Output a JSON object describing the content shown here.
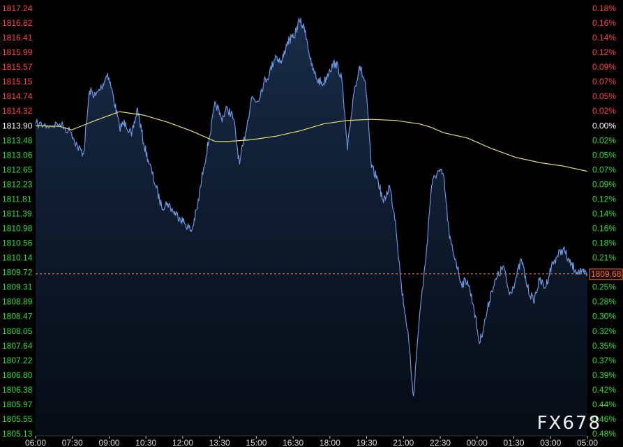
{
  "chart_data": {
    "type": "line",
    "instrument_reference_price": 1813.9,
    "last_price": 1809.68,
    "last_price_label": "1809.68",
    "y_left_ticks": [
      {
        "label": "1817.24",
        "color": "#ff4444"
      },
      {
        "label": "1816.82",
        "color": "#ff4444"
      },
      {
        "label": "1816.41",
        "color": "#ff4444"
      },
      {
        "label": "1815.99",
        "color": "#ff4444"
      },
      {
        "label": "1815.57",
        "color": "#ff4444"
      },
      {
        "label": "1815.15",
        "color": "#ff4444"
      },
      {
        "label": "1814.74",
        "color": "#ff4444"
      },
      {
        "label": "1814.32",
        "color": "#ff4444"
      },
      {
        "label": "1813.90",
        "color": "#ffffff"
      },
      {
        "label": "1813.48",
        "color": "#33dd33"
      },
      {
        "label": "1813.06",
        "color": "#33dd33"
      },
      {
        "label": "1812.65",
        "color": "#33dd33"
      },
      {
        "label": "1812.23",
        "color": "#33dd33"
      },
      {
        "label": "1811.81",
        "color": "#33dd33"
      },
      {
        "label": "1811.39",
        "color": "#33dd33"
      },
      {
        "label": "1810.98",
        "color": "#33dd33"
      },
      {
        "label": "1810.56",
        "color": "#33dd33"
      },
      {
        "label": "1810.14",
        "color": "#33dd33"
      },
      {
        "label": "1809.72",
        "color": "#33dd33"
      },
      {
        "label": "1809.31",
        "color": "#33dd33"
      },
      {
        "label": "1808.89",
        "color": "#33dd33"
      },
      {
        "label": "1808.47",
        "color": "#33dd33"
      },
      {
        "label": "1808.05",
        "color": "#33dd33"
      },
      {
        "label": "1807.64",
        "color": "#33dd33"
      },
      {
        "label": "1807.22",
        "color": "#33dd33"
      },
      {
        "label": "1806.80",
        "color": "#33dd33"
      },
      {
        "label": "1806.38",
        "color": "#33dd33"
      },
      {
        "label": "1805.97",
        "color": "#33dd33"
      },
      {
        "label": "1805.55",
        "color": "#33dd33"
      },
      {
        "label": "1805.13",
        "color": "#33dd33"
      }
    ],
    "y_right_ticks": [
      {
        "label": "0.18%",
        "color": "#ff4444"
      },
      {
        "label": "0.16%",
        "color": "#ff4444"
      },
      {
        "label": "0.14%",
        "color": "#ff4444"
      },
      {
        "label": "0.12%",
        "color": "#ff4444"
      },
      {
        "label": "0.09%",
        "color": "#ff4444"
      },
      {
        "label": "0.07%",
        "color": "#ff4444"
      },
      {
        "label": "0.05%",
        "color": "#ff4444"
      },
      {
        "label": "0.02%",
        "color": "#ff4444"
      },
      {
        "label": "0.00%",
        "color": "#ffffff"
      },
      {
        "label": "0.02%",
        "color": "#33dd33"
      },
      {
        "label": "0.05%",
        "color": "#33dd33"
      },
      {
        "label": "0.07%",
        "color": "#33dd33"
      },
      {
        "label": "0.09%",
        "color": "#33dd33"
      },
      {
        "label": "0.12%",
        "color": "#33dd33"
      },
      {
        "label": "0.14%",
        "color": "#33dd33"
      },
      {
        "label": "0.16%",
        "color": "#33dd33"
      },
      {
        "label": "0.18%",
        "color": "#33dd33"
      },
      {
        "label": "0.21%",
        "color": "#33dd33"
      },
      {
        "label": "0.23%",
        "color": "#33dd33"
      },
      {
        "label": "0.25%",
        "color": "#33dd33"
      },
      {
        "label": "0.28%",
        "color": "#33dd33"
      },
      {
        "label": "0.30%",
        "color": "#33dd33"
      },
      {
        "label": "0.32%",
        "color": "#33dd33"
      },
      {
        "label": "0.35%",
        "color": "#33dd33"
      },
      {
        "label": "0.37%",
        "color": "#33dd33"
      },
      {
        "label": "0.39%",
        "color": "#33dd33"
      },
      {
        "label": "0.42%",
        "color": "#33dd33"
      },
      {
        "label": "0.44%",
        "color": "#33dd33"
      },
      {
        "label": "0.46%",
        "color": "#33dd33"
      },
      {
        "label": "0.48%",
        "color": "#33dd33"
      }
    ],
    "x_ticks": [
      "06:00",
      "07:30",
      "09:00",
      "10:30",
      "12:00",
      "13:30",
      "15:00",
      "16:30",
      "18:00",
      "19:30",
      "21:00",
      "22:30",
      "00:00",
      "01:30",
      "03:00",
      "05:00"
    ],
    "ylim": [
      1805.13,
      1817.24
    ],
    "grid": false,
    "series": [
      {
        "role": "price",
        "color": "#6a95e0",
        "fill": "#13233d",
        "x": [
          "06:00",
          "06:30",
          "07:00",
          "07:30",
          "07:45",
          "08:00",
          "08:15",
          "08:30",
          "08:45",
          "09:00",
          "09:15",
          "09:30",
          "09:45",
          "10:00",
          "10:15",
          "10:30",
          "10:45",
          "11:00",
          "11:15",
          "11:30",
          "11:45",
          "12:00",
          "12:15",
          "12:30",
          "12:45",
          "13:00",
          "13:15",
          "13:30",
          "13:45",
          "14:00",
          "14:15",
          "14:30",
          "14:45",
          "15:00",
          "15:15",
          "15:30",
          "15:45",
          "16:00",
          "16:15",
          "16:30",
          "16:45",
          "17:00",
          "17:15",
          "17:30",
          "17:45",
          "18:00",
          "18:15",
          "18:30",
          "18:45",
          "19:00",
          "19:15",
          "19:30",
          "19:45",
          "20:00",
          "20:15",
          "20:30",
          "20:45",
          "21:00",
          "21:15",
          "21:30",
          "21:45",
          "22:00",
          "22:15",
          "22:30",
          "22:45",
          "23:00",
          "23:15",
          "23:30",
          "23:45",
          "00:00",
          "00:15",
          "00:30",
          "00:45",
          "01:00",
          "01:15",
          "01:30",
          "01:45",
          "02:00",
          "02:15",
          "02:30",
          "02:45",
          "03:00",
          "03:15",
          "03:30",
          "03:45",
          "04:00",
          "04:15",
          "04:30",
          "04:45",
          "05:00"
        ],
        "values": [
          1813.95,
          1813.9,
          1813.95,
          1813.7,
          1813.3,
          1813.1,
          1814.9,
          1814.75,
          1815.0,
          1815.4,
          1814.7,
          1813.85,
          1814.0,
          1813.6,
          1814.4,
          1813.4,
          1812.8,
          1812.2,
          1811.6,
          1811.7,
          1811.45,
          1811.3,
          1811.1,
          1810.9,
          1811.6,
          1812.7,
          1813.6,
          1814.55,
          1814.1,
          1814.4,
          1814.1,
          1812.8,
          1813.7,
          1814.7,
          1814.6,
          1815.1,
          1815.4,
          1815.9,
          1815.7,
          1816.3,
          1816.4,
          1816.9,
          1816.6,
          1815.6,
          1815.2,
          1815.1,
          1815.5,
          1815.7,
          1815.3,
          1813.2,
          1814.8,
          1815.6,
          1815.1,
          1812.7,
          1812.4,
          1811.7,
          1812.2,
          1811.2,
          1809.3,
          1808.1,
          1806.2,
          1808.5,
          1810.0,
          1812.2,
          1812.6,
          1812.5,
          1810.7,
          1810.1,
          1809.4,
          1809.5,
          1808.8,
          1807.7,
          1808.4,
          1809.2,
          1809.6,
          1809.9,
          1809.1,
          1809.5,
          1810.1,
          1809.3,
          1808.9,
          1809.5,
          1809.3,
          1809.9,
          1810.2,
          1810.4,
          1810.0,
          1809.8,
          1809.7,
          1809.68
        ]
      },
      {
        "role": "average",
        "color": "#e8e070",
        "x": [
          "06:00",
          "07:00",
          "07:30",
          "08:30",
          "09:30",
          "10:00",
          "10:30",
          "11:30",
          "12:30",
          "13:30",
          "14:00",
          "15:00",
          "16:00",
          "17:00",
          "18:00",
          "19:00",
          "20:00",
          "21:00",
          "22:00",
          "22:30",
          "23:00",
          "00:00",
          "01:00",
          "02:00",
          "03:00",
          "04:00",
          "05:00"
        ],
        "values": [
          1813.9,
          1813.88,
          1813.78,
          1814.05,
          1814.3,
          1814.25,
          1814.2,
          1814.0,
          1813.75,
          1813.45,
          1813.45,
          1813.5,
          1813.6,
          1813.75,
          1813.95,
          1814.05,
          1814.08,
          1814.05,
          1813.95,
          1813.85,
          1813.7,
          1813.55,
          1813.25,
          1813.0,
          1812.85,
          1812.75,
          1812.6
        ]
      }
    ]
  },
  "watermark": "FX678"
}
